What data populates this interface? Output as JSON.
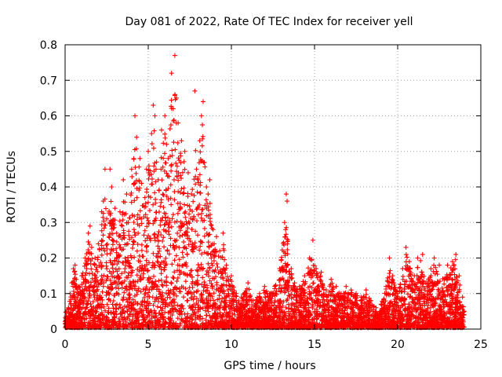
{
  "chart_data": {
    "type": "scatter",
    "title": "Day 081 of 2022, Rate Of TEC Index for receiver yell",
    "xlabel": "GPS time / hours",
    "ylabel": "ROTI / TECUs",
    "xlim": [
      0,
      25
    ],
    "ylim": [
      0,
      0.8
    ],
    "xticks": [
      0,
      5,
      10,
      15,
      20,
      25
    ],
    "yticks": [
      0,
      0.1,
      0.2,
      0.3,
      0.4,
      0.5,
      0.6,
      0.7,
      0.8
    ],
    "xtick_labels": [
      "0",
      "5",
      "10",
      "15",
      "20",
      "25"
    ],
    "ytick_labels": [
      "0",
      "0.1",
      "0.2",
      "0.3",
      "0.4",
      "0.5",
      "0.6",
      "0.7",
      "0.8"
    ],
    "grid": true,
    "grid_style": "dotted",
    "marker": "+",
    "marker_color": "#ff0000",
    "series": [
      {
        "name": "ROTI",
        "points": [
          [
            0.1,
            0.02
          ],
          [
            0.2,
            0.06
          ],
          [
            0.3,
            0.1
          ],
          [
            0.4,
            0.13
          ],
          [
            0.5,
            0.17
          ],
          [
            0.6,
            0.18
          ],
          [
            0.8,
            0.12
          ],
          [
            1.0,
            0.15
          ],
          [
            1.2,
            0.2
          ],
          [
            1.4,
            0.27
          ],
          [
            1.5,
            0.29
          ],
          [
            1.6,
            0.23
          ],
          [
            1.8,
            0.2
          ],
          [
            2.0,
            0.24
          ],
          [
            2.2,
            0.33
          ],
          [
            2.3,
            0.36
          ],
          [
            2.4,
            0.45
          ],
          [
            2.5,
            0.31
          ],
          [
            2.7,
            0.45
          ],
          [
            2.8,
            0.4
          ],
          [
            3.0,
            0.34
          ],
          [
            3.1,
            0.27
          ],
          [
            3.3,
            0.33
          ],
          [
            3.5,
            0.42
          ],
          [
            3.7,
            0.38
          ],
          [
            3.8,
            0.3
          ],
          [
            4.0,
            0.45
          ],
          [
            4.2,
            0.6
          ],
          [
            4.3,
            0.54
          ],
          [
            4.5,
            0.48
          ],
          [
            4.6,
            0.41
          ],
          [
            4.8,
            0.37
          ],
          [
            4.9,
            0.45
          ],
          [
            5.0,
            0.5
          ],
          [
            5.2,
            0.55
          ],
          [
            5.3,
            0.63
          ],
          [
            5.4,
            0.6
          ],
          [
            5.5,
            0.47
          ],
          [
            5.6,
            0.42
          ],
          [
            5.8,
            0.56
          ],
          [
            6.0,
            0.6
          ],
          [
            6.1,
            0.52
          ],
          [
            6.2,
            0.48
          ],
          [
            6.4,
            0.72
          ],
          [
            6.5,
            0.62
          ],
          [
            6.6,
            0.77
          ],
          [
            6.7,
            0.65
          ],
          [
            6.8,
            0.58
          ],
          [
            7.0,
            0.53
          ],
          [
            7.2,
            0.5
          ],
          [
            7.4,
            0.44
          ],
          [
            7.6,
            0.38
          ],
          [
            7.8,
            0.67
          ],
          [
            7.9,
            0.45
          ],
          [
            8.1,
            0.53
          ],
          [
            8.2,
            0.6
          ],
          [
            8.3,
            0.64
          ],
          [
            8.5,
            0.4
          ],
          [
            8.6,
            0.38
          ],
          [
            8.7,
            0.42
          ],
          [
            8.9,
            0.28
          ],
          [
            9.1,
            0.26
          ],
          [
            9.3,
            0.22
          ],
          [
            9.5,
            0.27
          ],
          [
            9.7,
            0.18
          ],
          [
            10.0,
            0.15
          ],
          [
            10.3,
            0.1
          ],
          [
            10.6,
            0.09
          ],
          [
            11.0,
            0.13
          ],
          [
            11.3,
            0.08
          ],
          [
            11.7,
            0.1
          ],
          [
            12.0,
            0.12
          ],
          [
            12.3,
            0.1
          ],
          [
            12.6,
            0.12
          ],
          [
            12.9,
            0.17
          ],
          [
            13.2,
            0.3
          ],
          [
            13.3,
            0.38
          ],
          [
            13.35,
            0.36
          ],
          [
            13.4,
            0.25
          ],
          [
            13.6,
            0.17
          ],
          [
            13.8,
            0.13
          ],
          [
            14.1,
            0.12
          ],
          [
            14.4,
            0.15
          ],
          [
            14.7,
            0.2
          ],
          [
            14.9,
            0.25
          ],
          [
            15.1,
            0.17
          ],
          [
            15.4,
            0.16
          ],
          [
            15.7,
            0.11
          ],
          [
            16.0,
            0.14
          ],
          [
            16.3,
            0.12
          ],
          [
            16.6,
            0.1
          ],
          [
            16.9,
            0.12
          ],
          [
            17.2,
            0.11
          ],
          [
            17.5,
            0.1
          ],
          [
            17.8,
            0.09
          ],
          [
            18.1,
            0.11
          ],
          [
            18.4,
            0.08
          ],
          [
            18.7,
            0.06
          ],
          [
            19.0,
            0.07
          ],
          [
            19.3,
            0.12
          ],
          [
            19.5,
            0.2
          ],
          [
            19.7,
            0.15
          ],
          [
            20.0,
            0.1
          ],
          [
            20.3,
            0.17
          ],
          [
            20.5,
            0.23
          ],
          [
            20.7,
            0.19
          ],
          [
            21.0,
            0.15
          ],
          [
            21.2,
            0.2
          ],
          [
            21.5,
            0.21
          ],
          [
            21.7,
            0.13
          ],
          [
            22.0,
            0.17
          ],
          [
            22.2,
            0.2
          ],
          [
            22.5,
            0.18
          ],
          [
            22.8,
            0.14
          ],
          [
            23.0,
            0.18
          ],
          [
            23.3,
            0.19
          ],
          [
            23.5,
            0.21
          ],
          [
            23.7,
            0.15
          ],
          [
            23.9,
            0.09
          ],
          [
            24.0,
            0.05
          ]
        ]
      }
    ]
  }
}
